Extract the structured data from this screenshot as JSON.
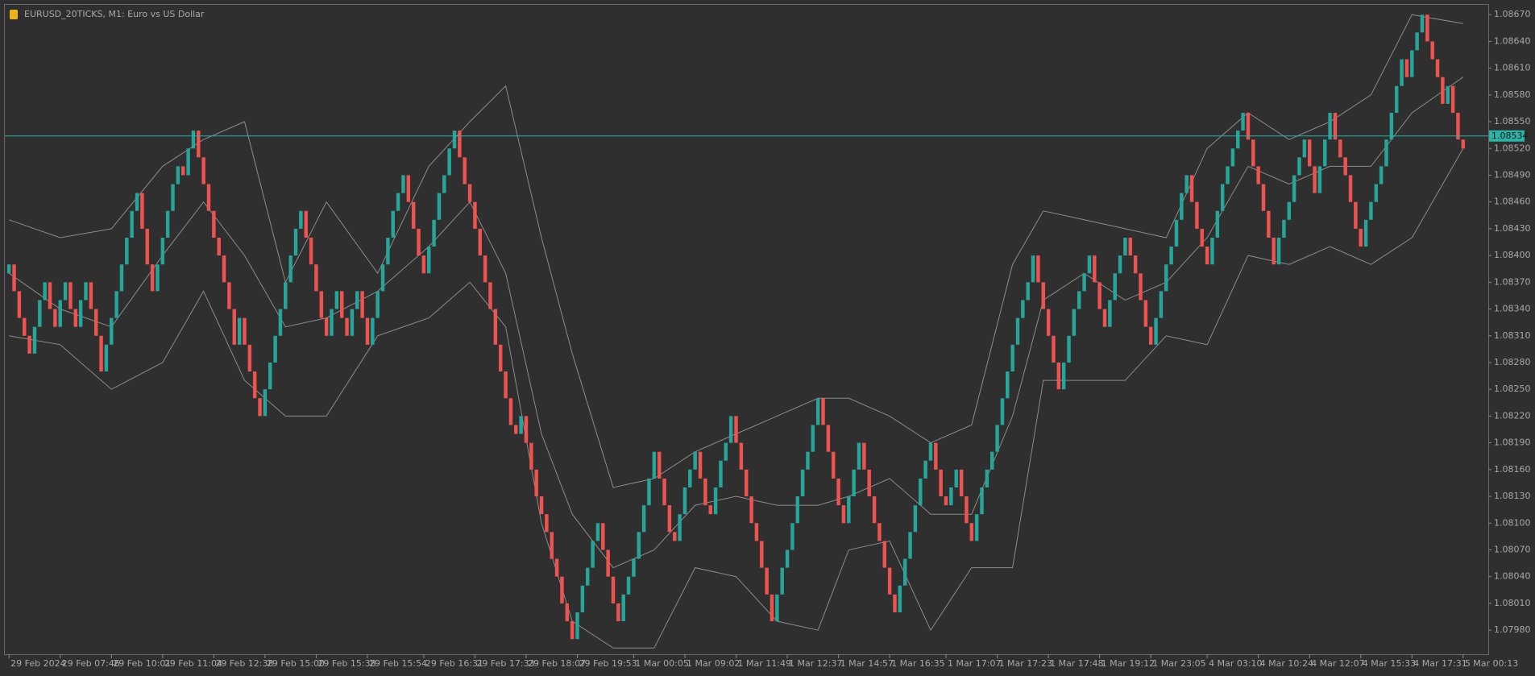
{
  "chart_data": {
    "type": "candlestick",
    "title": "EURUSD_20TICKS, M1:  Euro vs US Dollar",
    "bull_color": "#26a69a",
    "bear_color": "#ef5350",
    "band_color": "#8c8c8c",
    "price_line_color": "#2ab3a6",
    "grid": false,
    "ylim": [
      1.07953,
      1.08681
    ],
    "yticks": [
      {
        "value": 1.0798,
        "label": "1.07980"
      },
      {
        "value": 1.0801,
        "label": "1.08010"
      },
      {
        "value": 1.0804,
        "label": "1.08040"
      },
      {
        "value": 1.0807,
        "label": "1.08070"
      },
      {
        "value": 1.081,
        "label": "1.08100"
      },
      {
        "value": 1.0813,
        "label": "1.08130"
      },
      {
        "value": 1.0816,
        "label": "1.08160"
      },
      {
        "value": 1.0819,
        "label": "1.08190"
      },
      {
        "value": 1.0822,
        "label": "1.08220"
      },
      {
        "value": 1.0825,
        "label": "1.08250"
      },
      {
        "value": 1.0828,
        "label": "1.08280"
      },
      {
        "value": 1.0831,
        "label": "1.08310"
      },
      {
        "value": 1.0834,
        "label": "1.08340"
      },
      {
        "value": 1.0837,
        "label": "1.08370"
      },
      {
        "value": 1.084,
        "label": "1.08400"
      },
      {
        "value": 1.0843,
        "label": "1.08430"
      },
      {
        "value": 1.0846,
        "label": "1.08460"
      },
      {
        "value": 1.0849,
        "label": "1.08490"
      },
      {
        "value": 1.0852,
        "label": "1.08520"
      },
      {
        "value": 1.0855,
        "label": "1.08550"
      },
      {
        "value": 1.0858,
        "label": "1.08580"
      },
      {
        "value": 1.0861,
        "label": "1.08610"
      },
      {
        "value": 1.0864,
        "label": "1.08640"
      },
      {
        "value": 1.0867,
        "label": "1.08670"
      }
    ],
    "xticks": [
      {
        "value": 0,
        "label": "29 Feb 2024"
      },
      {
        "value": 10,
        "label": "29 Feb 07:46"
      },
      {
        "value": 20,
        "label": "29 Feb 10:01"
      },
      {
        "value": 30,
        "label": "29 Feb 11:04"
      },
      {
        "value": 40,
        "label": "29 Feb 12:38"
      },
      {
        "value": 50,
        "label": "29 Feb 15:00"
      },
      {
        "value": 60,
        "label": "29 Feb 15:38"
      },
      {
        "value": 70,
        "label": "29 Feb 15:54"
      },
      {
        "value": 81,
        "label": "29 Feb 16:31"
      },
      {
        "value": 91,
        "label": "29 Feb 17:33"
      },
      {
        "value": 101,
        "label": "29 Feb 18:07"
      },
      {
        "value": 111,
        "label": "29 Feb 19:53"
      },
      {
        "value": 122,
        "label": "1 Mar 00:05"
      },
      {
        "value": 132,
        "label": "1 Mar 09:02"
      },
      {
        "value": 142,
        "label": "1 Mar 11:49"
      },
      {
        "value": 152,
        "label": "1 Mar 12:37"
      },
      {
        "value": 162,
        "label": "1 Mar 14:57"
      },
      {
        "value": 172,
        "label": "1 Mar 16:35"
      },
      {
        "value": 183,
        "label": "1 Mar 17:07"
      },
      {
        "value": 193,
        "label": "1 Mar 17:23"
      },
      {
        "value": 203,
        "label": "1 Mar 17:48"
      },
      {
        "value": 213,
        "label": "1 Mar 19:12"
      },
      {
        "value": 223,
        "label": "1 Mar 23:05"
      },
      {
        "value": 234,
        "label": "4 Mar 03:10"
      },
      {
        "value": 244,
        "label": "4 Mar 10:24"
      },
      {
        "value": 254,
        "label": "4 Mar 12:07"
      },
      {
        "value": 264,
        "label": "4 Mar 15:33"
      },
      {
        "value": 274,
        "label": "4 Mar 17:31"
      },
      {
        "value": 284,
        "label": "5 Mar 00:13"
      }
    ],
    "current_price": 1.08534,
    "open": [
      1.0838,
      1.0839,
      1.0836,
      1.0833,
      1.0831,
      1.0829,
      1.0832,
      1.0835,
      1.0837,
      1.0834,
      1.0832,
      1.0835,
      1.0837,
      1.0834,
      1.0832,
      1.0835,
      1.0837,
      1.0834,
      1.0831,
      1.0827,
      1.083,
      1.0833,
      1.0836,
      1.0839,
      1.0842,
      1.0845,
      1.0847,
      1.0843,
      1.0839,
      1.0836,
      1.0839,
      1.0842,
      1.0845,
      1.0848,
      1.085,
      1.0849,
      1.0852,
      1.0854,
      1.0851,
      1.0848,
      1.0845,
      1.0842,
      1.084,
      1.0837,
      1.0834,
      1.083,
      1.0833,
      1.083,
      1.0827,
      1.0824,
      1.0822,
      1.0825,
      1.0828,
      1.0831,
      1.0834,
      1.0837,
      1.084,
      1.0843,
      1.0845,
      1.0842,
      1.0839,
      1.0836,
      1.0833,
      1.0831,
      1.0834,
      1.0836,
      1.0833,
      1.0831,
      1.0834,
      1.0836,
      1.0833,
      1.083,
      1.0833,
      1.0836,
      1.0839,
      1.0842,
      1.0845,
      1.0847,
      1.0849,
      1.0846,
      1.0843,
      1.084,
      1.0838,
      1.0841,
      1.0844,
      1.0847,
      1.0849,
      1.0852,
      1.0854,
      1.0851,
      1.0848,
      1.0846,
      1.0843,
      1.084,
      1.0837,
      1.0834,
      1.083,
      1.0827,
      1.0824,
      1.0821,
      1.082,
      1.0822,
      1.0819,
      1.0816,
      1.0813,
      1.0811,
      1.0809,
      1.0806,
      1.0804,
      1.0801,
      1.0799,
      1.0797,
      1.08,
      1.0803,
      1.0805,
      1.0808,
      1.081,
      1.0807,
      1.0804,
      1.0801,
      1.0799,
      1.0802,
      1.0804,
      1.0806,
      1.0809,
      1.0812,
      1.0815,
      1.0818,
      1.0815,
      1.0812,
      1.0809,
      1.0808,
      1.0811,
      1.0814,
      1.0816,
      1.0818,
      1.0815,
      1.0812,
      1.0811,
      1.0814,
      1.0817,
      1.0819,
      1.0822,
      1.0819,
      1.0816,
      1.0813,
      1.081,
      1.0808,
      1.0805,
      1.0802,
      1.0799,
      1.0802,
      1.0805,
      1.0807,
      1.081,
      1.0813,
      1.0816,
      1.0818,
      1.0821,
      1.0824,
      1.0821,
      1.0818,
      1.0815,
      1.0812,
      1.081,
      1.0813,
      1.0816,
      1.0819,
      1.0816,
      1.0813,
      1.081,
      1.0808,
      1.0805,
      1.0802,
      1.08,
      1.0803,
      1.0806,
      1.0809,
      1.0812,
      1.0815,
      1.0817,
      1.0819,
      1.0816,
      1.0813,
      1.0812,
      1.0814,
      1.0816,
      1.0813,
      1.081,
      1.0808,
      1.0811,
      1.0814,
      1.0816,
      1.0818,
      1.0821,
      1.0824,
      1.0827,
      1.083,
      1.0833,
      1.0835,
      1.0837,
      1.084,
      1.0837,
      1.0834,
      1.0831,
      1.0828,
      1.0825,
      1.0828,
      1.0831,
      1.0834,
      1.0836,
      1.0838,
      1.084,
      1.0837,
      1.0834,
      1.0832,
      1.0835,
      1.0838,
      1.084,
      1.0842,
      1.084,
      1.0838,
      1.0835,
      1.0832,
      1.083,
      1.0833,
      1.0836,
      1.0839,
      1.0841,
      1.0844,
      1.0847,
      1.0849,
      1.0846,
      1.0843,
      1.0841,
      1.0839,
      1.0842,
      1.0845,
      1.0848,
      1.085,
      1.0852,
      1.0854,
      1.0856,
      1.0853,
      1.085,
      1.0848,
      1.0845,
      1.0842,
      1.0839,
      1.0842,
      1.0844,
      1.0846,
      1.0849,
      1.0851,
      1.0853,
      1.085,
      1.0847,
      1.085,
      1.0853,
      1.0856,
      1.0853,
      1.0851,
      1.0849,
      1.0846,
      1.0843,
      1.0841,
      1.0844,
      1.0846,
      1.0848,
      1.085,
      1.0853,
      1.0856,
      1.0859,
      1.0862,
      1.086,
      1.0863,
      1.0865,
      1.0867,
      1.0864,
      1.0862,
      1.086,
      1.0857,
      1.0859,
      1.0856,
      1.0853
    ],
    "close": [
      1.0839,
      1.0836,
      1.0833,
      1.0831,
      1.0829,
      1.0832,
      1.0835,
      1.0837,
      1.0834,
      1.0832,
      1.0835,
      1.0837,
      1.0834,
      1.0832,
      1.0835,
      1.0837,
      1.0834,
      1.0831,
      1.0827,
      1.083,
      1.0833,
      1.0836,
      1.0839,
      1.0842,
      1.0845,
      1.0847,
      1.0843,
      1.0839,
      1.0836,
      1.0839,
      1.0842,
      1.0845,
      1.0848,
      1.085,
      1.0849,
      1.0852,
      1.0854,
      1.0851,
      1.0848,
      1.0845,
      1.0842,
      1.084,
      1.0837,
      1.0834,
      1.083,
      1.0833,
      1.083,
      1.0827,
      1.0824,
      1.0822,
      1.0825,
      1.0828,
      1.0831,
      1.0834,
      1.0837,
      1.084,
      1.0843,
      1.0845,
      1.0842,
      1.0839,
      1.0836,
      1.0833,
      1.0831,
      1.0834,
      1.0836,
      1.0833,
      1.0831,
      1.0834,
      1.0836,
      1.0833,
      1.083,
      1.0833,
      1.0836,
      1.0839,
      1.0842,
      1.0845,
      1.0847,
      1.0849,
      1.0846,
      1.0843,
      1.084,
      1.0838,
      1.0841,
      1.0844,
      1.0847,
      1.0849,
      1.0852,
      1.0854,
      1.0851,
      1.0848,
      1.0846,
      1.0843,
      1.084,
      1.0837,
      1.0834,
      1.083,
      1.0827,
      1.0824,
      1.0821,
      1.082,
      1.0822,
      1.0819,
      1.0816,
      1.0813,
      1.0811,
      1.0809,
      1.0806,
      1.0804,
      1.0801,
      1.0799,
      1.0797,
      1.08,
      1.0803,
      1.0805,
      1.0808,
      1.081,
      1.0807,
      1.0804,
      1.0801,
      1.0799,
      1.0802,
      1.0804,
      1.0806,
      1.0809,
      1.0812,
      1.0815,
      1.0818,
      1.0815,
      1.0812,
      1.0809,
      1.0808,
      1.0811,
      1.0814,
      1.0816,
      1.0818,
      1.0815,
      1.0812,
      1.0811,
      1.0814,
      1.0817,
      1.0819,
      1.0822,
      1.0819,
      1.0816,
      1.0813,
      1.081,
      1.0808,
      1.0805,
      1.0802,
      1.0799,
      1.0802,
      1.0805,
      1.0807,
      1.081,
      1.0813,
      1.0816,
      1.0818,
      1.0821,
      1.0824,
      1.0821,
      1.0818,
      1.0815,
      1.0812,
      1.081,
      1.0813,
      1.0816,
      1.0819,
      1.0816,
      1.0813,
      1.081,
      1.0808,
      1.0805,
      1.0802,
      1.08,
      1.0803,
      1.0806,
      1.0809,
      1.0812,
      1.0815,
      1.0817,
      1.0819,
      1.0816,
      1.0813,
      1.0812,
      1.0814,
      1.0816,
      1.0813,
      1.081,
      1.0808,
      1.0811,
      1.0814,
      1.0816,
      1.0818,
      1.0821,
      1.0824,
      1.0827,
      1.083,
      1.0833,
      1.0835,
      1.0837,
      1.084,
      1.0837,
      1.0834,
      1.0831,
      1.0828,
      1.0825,
      1.0828,
      1.0831,
      1.0834,
      1.0836,
      1.0838,
      1.084,
      1.0837,
      1.0834,
      1.0832,
      1.0835,
      1.0838,
      1.084,
      1.0842,
      1.084,
      1.0838,
      1.0835,
      1.0832,
      1.083,
      1.0833,
      1.0836,
      1.0839,
      1.0841,
      1.0844,
      1.0847,
      1.0849,
      1.0846,
      1.0843,
      1.0841,
      1.0839,
      1.0842,
      1.0845,
      1.0848,
      1.085,
      1.0852,
      1.0854,
      1.0856,
      1.0853,
      1.085,
      1.0848,
      1.0845,
      1.0842,
      1.0839,
      1.0842,
      1.0844,
      1.0846,
      1.0849,
      1.0851,
      1.0853,
      1.085,
      1.0847,
      1.085,
      1.0853,
      1.0856,
      1.0853,
      1.0851,
      1.0849,
      1.0846,
      1.0843,
      1.0841,
      1.0844,
      1.0846,
      1.0848,
      1.085,
      1.0853,
      1.0856,
      1.0859,
      1.0862,
      1.086,
      1.0863,
      1.0865,
      1.0867,
      1.0864,
      1.0862,
      1.086,
      1.0857,
      1.0859,
      1.0856,
      1.0853,
      1.0852
    ],
    "bands": {
      "x": [
        0,
        10,
        20,
        30,
        38,
        46,
        54,
        62,
        72,
        82,
        90,
        97,
        104,
        110,
        118,
        126,
        134,
        142,
        150,
        158,
        164,
        172,
        180,
        188,
        196,
        202,
        210,
        218,
        226,
        234,
        242,
        250,
        258,
        266,
        274,
        284
      ],
      "upper": [
        1.0844,
        1.0842,
        1.0843,
        1.085,
        1.0853,
        1.0855,
        1.0837,
        1.0846,
        1.0838,
        1.085,
        1.0855,
        1.0859,
        1.0842,
        1.0829,
        1.0814,
        1.0815,
        1.0818,
        1.082,
        1.0822,
        1.0824,
        1.0824,
        1.0822,
        1.0819,
        1.0821,
        1.0839,
        1.0845,
        1.0844,
        1.0843,
        1.0842,
        1.0852,
        1.0856,
        1.0853,
        1.0855,
        1.0858,
        1.0867,
        1.0866
      ],
      "middle": [
        1.0838,
        1.0834,
        1.0832,
        1.084,
        1.0846,
        1.084,
        1.0832,
        1.0833,
        1.0836,
        1.0841,
        1.0846,
        1.0838,
        1.082,
        1.0811,
        1.0805,
        1.0807,
        1.0812,
        1.0813,
        1.0812,
        1.0812,
        1.0813,
        1.0815,
        1.0811,
        1.0811,
        1.0822,
        1.0835,
        1.0838,
        1.0835,
        1.0837,
        1.0842,
        1.085,
        1.0848,
        1.085,
        1.085,
        1.0856,
        1.086
      ],
      "lower": [
        1.0831,
        1.083,
        1.0825,
        1.0828,
        1.0836,
        1.0826,
        1.0822,
        1.0822,
        1.0831,
        1.0833,
        1.0837,
        1.0832,
        1.081,
        1.0799,
        1.0796,
        1.0796,
        1.0805,
        1.0804,
        1.0799,
        1.0798,
        1.0807,
        1.0808,
        1.0798,
        1.0805,
        1.0805,
        1.0826,
        1.0826,
        1.0826,
        1.0831,
        1.083,
        1.084,
        1.0839,
        1.0841,
        1.0839,
        1.0842,
        1.0852
      ]
    }
  }
}
